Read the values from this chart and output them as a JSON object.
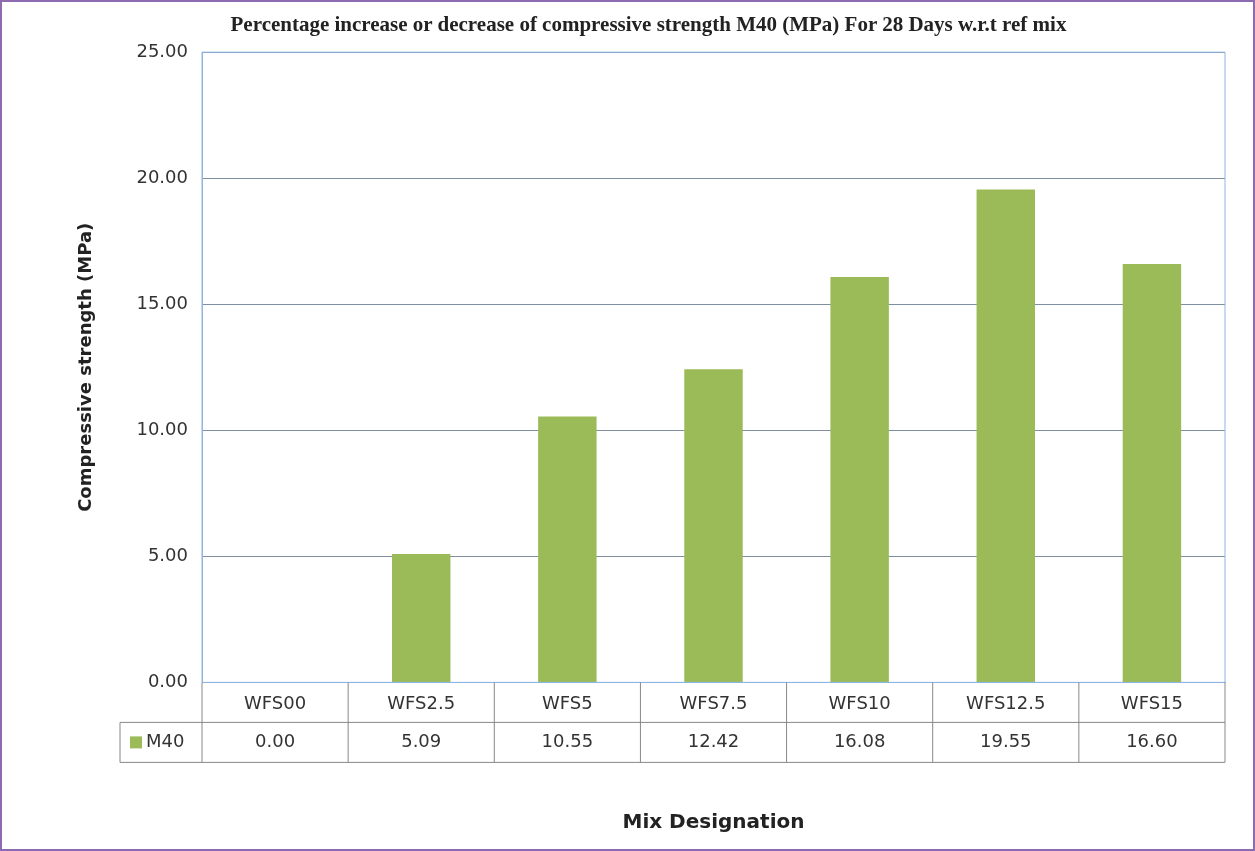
{
  "chart_data": {
    "type": "bar",
    "title": "Percentage increase or decrease of compressive strength M40 (MPa) For 28 Days w.r.t ref mix",
    "xlabel": "Mix Designation",
    "ylabel": "Compressive strength (MPa)",
    "categories": [
      "WFS00",
      "WFS2.5",
      "WFS5",
      "WFS7.5",
      "WFS10",
      "WFS12.5",
      "WFS15"
    ],
    "series": [
      {
        "name": "M40",
        "color": "#9bbb59",
        "values": [
          0,
          5.09,
          10.55,
          12.42,
          16.08,
          19.55,
          16.6
        ],
        "value_labels": [
          "0.00",
          "5.09",
          "10.55",
          "12.42",
          "16.08",
          "19.55",
          "16.60"
        ]
      }
    ],
    "ylim": [
      0,
      25
    ],
    "yticks": [
      {
        "value": 0,
        "label": "0.00"
      },
      {
        "value": 5,
        "label": "5.00"
      },
      {
        "value": 10,
        "label": "10.00"
      },
      {
        "value": 15,
        "label": "15.00"
      },
      {
        "value": 20,
        "label": "20.00"
      },
      {
        "value": 25,
        "label": "25.00"
      }
    ],
    "grid": "y",
    "legend": "bottom"
  }
}
